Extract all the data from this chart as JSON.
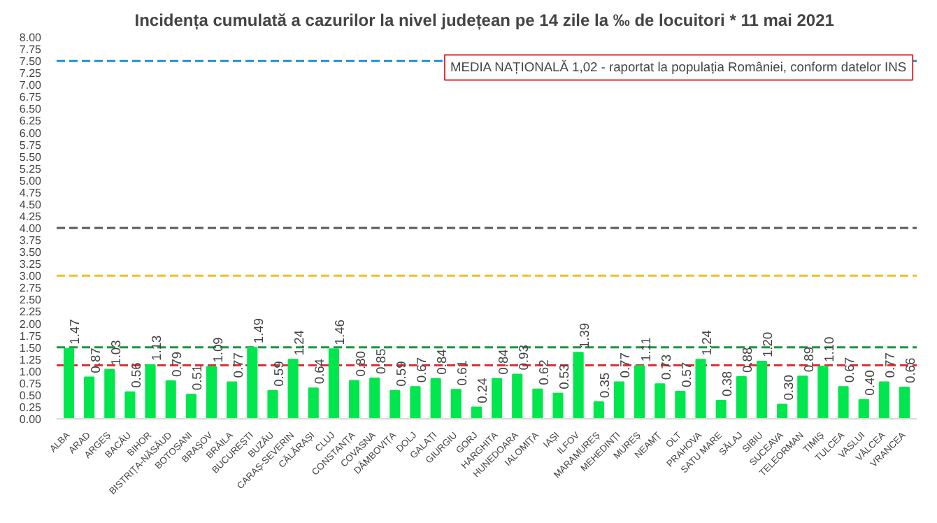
{
  "chart_data": {
    "type": "bar",
    "title": "Incidența cumulată a cazurilor la nivel județean pe 14 zile la ‰ de locuitori *  11 mai 2021",
    "categories": [
      "ALBA",
      "ARAD",
      "ARGEȘ",
      "BACĂU",
      "BIHOR",
      "BISTRIȚA-NĂSĂUD",
      "BOTOȘANI",
      "BRAȘOV",
      "BRĂILA",
      "BUCUREȘTI",
      "BUZĂU",
      "CARAȘ-SEVERIN",
      "CĂLĂRAȘI",
      "CLUJ",
      "CONSTANȚA",
      "COVASNA",
      "DÂMBOVIȚA",
      "DOLJ",
      "GALAȚI",
      "GIURGIU",
      "GORJ",
      "HARGHITA",
      "HUNEDOARA",
      "IALOMIȚA",
      "IAȘI",
      "ILFOV",
      "MARAMUREȘ",
      "MEHEDINȚI",
      "MUREȘ",
      "NEAMȚ",
      "OLT",
      "PRAHOVA",
      "SATU MARE",
      "SĂLAJ",
      "SIBIU",
      "SUCEAVA",
      "TELEORMAN",
      "TIMIȘ",
      "TULCEA",
      "VASLUI",
      "VÂLCEA",
      "VRANCEA"
    ],
    "values": [
      1.47,
      0.87,
      1.03,
      0.56,
      1.13,
      0.79,
      0.51,
      1.09,
      0.77,
      1.49,
      0.59,
      1.24,
      0.64,
      1.46,
      0.8,
      0.85,
      0.59,
      0.67,
      0.84,
      0.61,
      0.24,
      0.84,
      0.93,
      0.62,
      0.53,
      1.39,
      0.35,
      0.77,
      1.11,
      0.73,
      0.57,
      1.24,
      0.38,
      0.88,
      1.2,
      0.3,
      0.89,
      1.1,
      0.67,
      0.4,
      0.77,
      0.66
    ],
    "value_labels": [
      "1.47",
      "0.87",
      "1.03",
      "0.56",
      "1.13",
      "0.79",
      "0.51",
      "1.09",
      "0.77",
      "1.49",
      "0.59",
      "1.24",
      "0.64",
      "1.46",
      "0.80",
      "0.85",
      "0.59",
      "0.67",
      "0.84",
      "0.61",
      "0.24",
      "0.84",
      "0.93",
      "0.62",
      "0.53",
      "1.39",
      "0.35",
      "0.77",
      "1.11",
      "0.73",
      "0.57",
      "1.24",
      "0.38",
      "0.88",
      "1.20",
      "0.30",
      "0.89",
      "1.10",
      "0.67",
      "0.40",
      "0.77",
      "0.66"
    ],
    "color": "#00e64d",
    "ylim": [
      0,
      8
    ],
    "yticks": [
      {
        "value": 0,
        "label": "0.00"
      },
      {
        "value": 0.25,
        "label": "0.25"
      },
      {
        "value": 0.5,
        "label": "0.50"
      },
      {
        "value": 0.75,
        "label": "0.75"
      },
      {
        "value": 1,
        "label": "1.00"
      },
      {
        "value": 1.25,
        "label": "1.25"
      },
      {
        "value": 1.5,
        "label": "1.50"
      },
      {
        "value": 1.75,
        "label": "1.75"
      },
      {
        "value": 2,
        "label": "2.00"
      },
      {
        "value": 2.25,
        "label": "2.25"
      },
      {
        "value": 2.5,
        "label": "2.50"
      },
      {
        "value": 2.75,
        "label": "2.75"
      },
      {
        "value": 3,
        "label": "3.00"
      },
      {
        "value": 3.25,
        "label": "3.25"
      },
      {
        "value": 3.5,
        "label": "3.50"
      },
      {
        "value": 3.75,
        "label": "3.75"
      },
      {
        "value": 4,
        "label": "4.00"
      },
      {
        "value": 4.25,
        "label": "4.25"
      },
      {
        "value": 4.5,
        "label": "4.50"
      },
      {
        "value": 4.75,
        "label": "4.75"
      },
      {
        "value": 5,
        "label": "5.00"
      },
      {
        "value": 5.25,
        "label": "5.25"
      },
      {
        "value": 5.5,
        "label": "5.50"
      },
      {
        "value": 5.75,
        "label": "5.75"
      },
      {
        "value": 6,
        "label": "6.00"
      },
      {
        "value": 6.25,
        "label": "6.25"
      },
      {
        "value": 6.5,
        "label": "6.50"
      },
      {
        "value": 6.75,
        "label": "6.75"
      },
      {
        "value": 7,
        "label": "7.00"
      },
      {
        "value": 7.25,
        "label": "7.25"
      },
      {
        "value": 7.5,
        "label": "7.50"
      },
      {
        "value": 7.75,
        "label": "7.75"
      },
      {
        "value": 8,
        "label": "8.00"
      }
    ],
    "ref_lines": [
      {
        "axis": "y",
        "value": 7.5,
        "color": "#1f8fd8",
        "line_style": "dashed"
      },
      {
        "axis": "y",
        "value": 4,
        "color": "#595959",
        "line_style": "dashed"
      },
      {
        "axis": "y",
        "value": 3,
        "color": "#f0c020",
        "line_style": "dashed"
      },
      {
        "axis": "y",
        "value": 1.5,
        "color": "#1a9641",
        "line_style": "dashed"
      },
      {
        "axis": "y",
        "value": 1.12,
        "color": "#e03030",
        "line_style": "dashed"
      }
    ],
    "annotations": [
      "MEDIA NAȚIONALĂ 1,02 - raportat la populația României, conform datelor INS"
    ],
    "grid": false
  }
}
